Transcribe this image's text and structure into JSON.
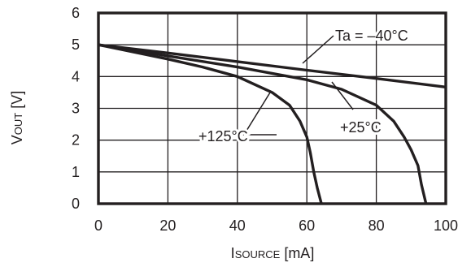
{
  "chart_data": {
    "type": "line",
    "title": "",
    "xlabel": {
      "prefix": "I",
      "sub": "SOURCE",
      "unit": " [mA]"
    },
    "ylabel": {
      "prefix": "V",
      "sub": "OUT",
      "unit": " [V]"
    },
    "xlim": [
      0,
      100
    ],
    "ylim": [
      0,
      6
    ],
    "xticks": [
      0,
      20,
      40,
      60,
      80,
      100
    ],
    "yticks": [
      0,
      1,
      2,
      3,
      4,
      5,
      6
    ],
    "grid": true,
    "legend": "none",
    "line_color": "#231f20",
    "series": [
      {
        "name": "Ta = –40°C",
        "x": [
          0,
          20,
          40,
          60,
          80,
          100
        ],
        "y": [
          5.0,
          4.74,
          4.47,
          4.2,
          3.94,
          3.67
        ]
      },
      {
        "name": "+25°C",
        "x": [
          0,
          20,
          40,
          60,
          70,
          80,
          85,
          88,
          90,
          92,
          93,
          94.3
        ],
        "y": [
          5.0,
          4.65,
          4.3,
          3.9,
          3.6,
          3.1,
          2.6,
          2.1,
          1.7,
          1.2,
          0.6,
          0
        ]
      },
      {
        "name": "+125°C",
        "x": [
          0,
          20,
          30,
          40,
          50,
          55,
          58,
          60,
          61,
          62,
          63,
          64.2
        ],
        "y": [
          5.0,
          4.55,
          4.3,
          4.0,
          3.5,
          3.1,
          2.6,
          2.1,
          1.6,
          1.0,
          0.5,
          0
        ]
      }
    ],
    "annotations": [
      {
        "text": "Ta = –40°C",
        "series": 0
      },
      {
        "text": "+25°C",
        "series": 1
      },
      {
        "text": "+125°C",
        "series": 2
      }
    ]
  }
}
